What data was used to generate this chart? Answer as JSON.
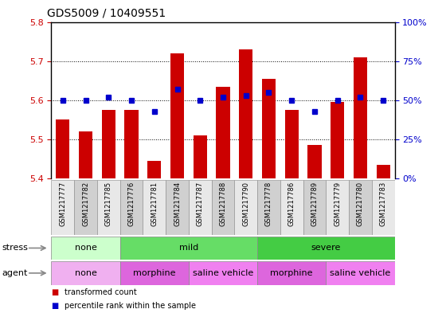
{
  "title": "GDS5009 / 10409551",
  "samples": [
    "GSM1217777",
    "GSM1217782",
    "GSM1217785",
    "GSM1217776",
    "GSM1217781",
    "GSM1217784",
    "GSM1217787",
    "GSM1217788",
    "GSM1217790",
    "GSM1217778",
    "GSM1217786",
    "GSM1217789",
    "GSM1217779",
    "GSM1217780",
    "GSM1217783"
  ],
  "transformed_count": [
    5.55,
    5.52,
    5.575,
    5.575,
    5.445,
    5.72,
    5.51,
    5.635,
    5.73,
    5.655,
    5.575,
    5.485,
    5.595,
    5.71,
    5.435
  ],
  "percentile_rank": [
    50,
    50,
    52,
    50,
    43,
    57,
    50,
    52,
    53,
    55,
    50,
    43,
    50,
    52,
    50
  ],
  "ylim_left": [
    5.4,
    5.8
  ],
  "ylim_right": [
    0,
    100
  ],
  "yticks_left": [
    5.4,
    5.5,
    5.6,
    5.7,
    5.8
  ],
  "yticks_right": [
    0,
    25,
    50,
    75,
    100
  ],
  "bar_color": "#cc0000",
  "dot_color": "#0000cc",
  "bar_bottom": 5.4,
  "stress_groups": [
    {
      "label": "none",
      "start": 0,
      "end": 3,
      "color": "#ccffcc"
    },
    {
      "label": "mild",
      "start": 3,
      "end": 9,
      "color": "#66dd66"
    },
    {
      "label": "severe",
      "start": 9,
      "end": 15,
      "color": "#44cc44"
    }
  ],
  "agent_groups": [
    {
      "label": "none",
      "start": 0,
      "end": 3,
      "color": "#f0b0f0"
    },
    {
      "label": "morphine",
      "start": 3,
      "end": 6,
      "color": "#dd66dd"
    },
    {
      "label": "saline vehicle",
      "start": 6,
      "end": 9,
      "color": "#f080f0"
    },
    {
      "label": "morphine",
      "start": 9,
      "end": 12,
      "color": "#dd66dd"
    },
    {
      "label": "saline vehicle",
      "start": 12,
      "end": 15,
      "color": "#f080f0"
    }
  ],
  "stress_label": "stress",
  "agent_label": "agent",
  "legend_items": [
    {
      "label": "transformed count",
      "color": "#cc0000"
    },
    {
      "label": "percentile rank within the sample",
      "color": "#0000cc"
    }
  ],
  "title_fontsize": 10,
  "tick_fontsize": 8,
  "label_fontsize": 8,
  "group_fontsize": 8,
  "name_fontsize": 6,
  "background_color": "#ffffff",
  "plot_bg_color": "#ffffff",
  "tick_color_left": "#cc0000",
  "tick_color_right": "#0000cc",
  "border_color": "#000000",
  "col_colors": [
    "#e8e8e8",
    "#d0d0d0"
  ]
}
